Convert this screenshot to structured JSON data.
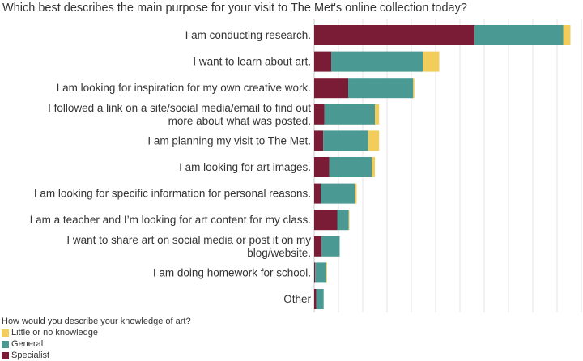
{
  "chart_data": {
    "type": "bar",
    "orientation": "horizontal",
    "stacked": true,
    "title": "Which best describes the main purpose for your visit to The Met's online collection today?",
    "categories": [
      [
        "I am conducting research."
      ],
      [
        "I want to learn about art."
      ],
      [
        "I am looking for inspiration for my own creative work."
      ],
      [
        "I followed a link on a site/social media/email to find out",
        "more about what was posted."
      ],
      [
        "I am planning my visit to The Met."
      ],
      [
        "I am looking for art images."
      ],
      [
        "I am looking for specific information for personal reasons."
      ],
      [
        "I am a teacher and I’m looking for art content for my class."
      ],
      [
        "I want to share art on social media or post it on my",
        "blog/website."
      ],
      [
        "I am doing homework for school."
      ],
      [
        "Other"
      ]
    ],
    "series": [
      {
        "name": "Specialist",
        "color": "#7b1c36",
        "values": [
          1320,
          140,
          280,
          85,
          75,
          125,
          55,
          190,
          60,
          8,
          18
        ]
      },
      {
        "name": "General",
        "color": "#4a9a93",
        "values": [
          730,
          755,
          535,
          415,
          370,
          350,
          280,
          95,
          150,
          90,
          60
        ]
      },
      {
        "name": "Little or no knowledge",
        "color": "#f2cd5c",
        "values": [
          60,
          135,
          10,
          35,
          90,
          25,
          15,
          5,
          0,
          8,
          0
        ]
      }
    ],
    "xlim": [
      0,
      2200
    ],
    "grid_interval": 200,
    "grid": true,
    "legend": {
      "title": "How would you describe your knowledge of art?",
      "placement": "bottom-left",
      "items": [
        {
          "name": "Little or no knowledge",
          "color": "#f2cd5c"
        },
        {
          "name": "General",
          "color": "#4a9a93"
        },
        {
          "name": "Specialist",
          "color": "#7b1c36"
        }
      ]
    }
  }
}
